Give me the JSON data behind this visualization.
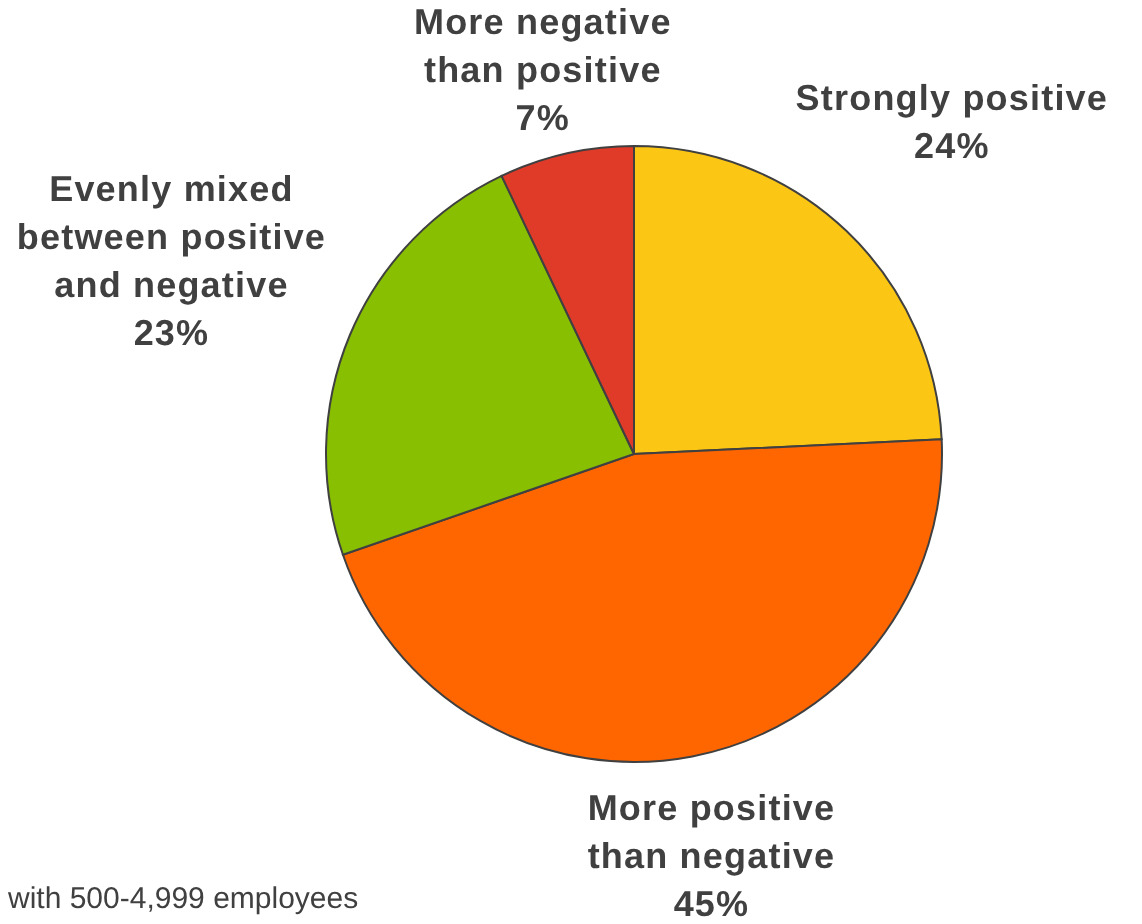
{
  "chart_data": {
    "type": "pie",
    "categories": [
      "Strongly positive",
      "More positive than negative",
      "Evenly mixed between positive and negative",
      "More negative than positive"
    ],
    "values": [
      24,
      45,
      23,
      7
    ],
    "colors": [
      "#fcc615",
      "#ff6600",
      "#88bf00",
      "#e03a28"
    ],
    "value_labels": [
      "24%",
      "45%",
      "23%",
      "7%"
    ],
    "annotations": [
      "with 500-4,999 employees"
    ]
  }
}
